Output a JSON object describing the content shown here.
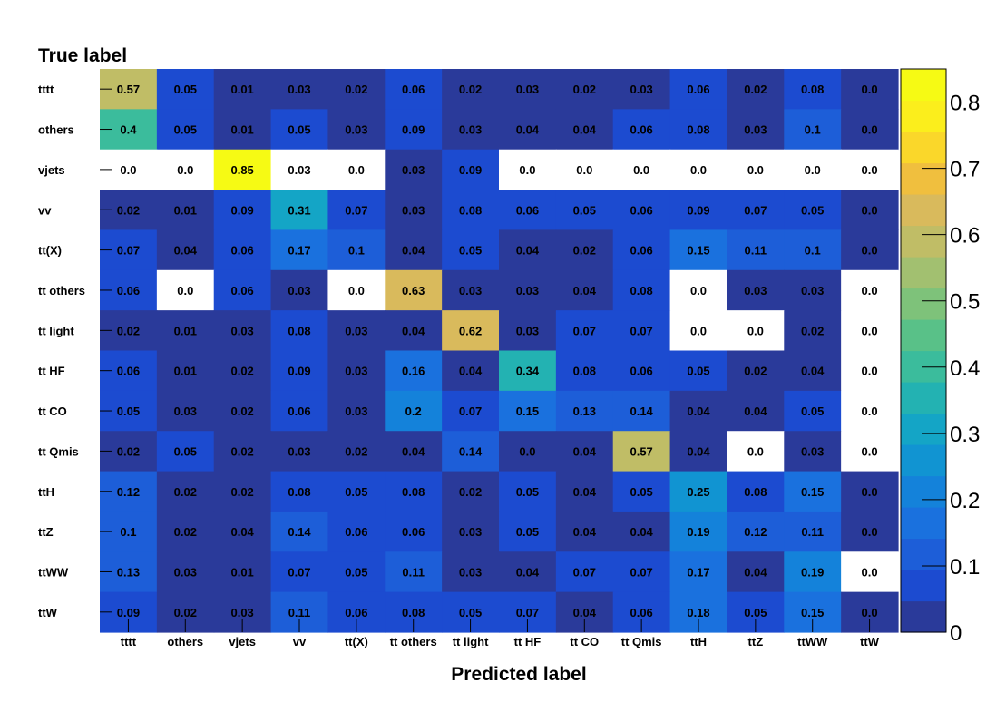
{
  "chart_data": {
    "type": "heatmap",
    "ylabel": "True label",
    "xlabel": "Predicted label",
    "x_categories": [
      "tttt",
      "others",
      "vjets",
      "vv",
      "tt(X)",
      "tt others",
      "tt light",
      "tt HF",
      "tt CO",
      "tt Qmis",
      "ttH",
      "ttZ",
      "ttWW",
      "ttW"
    ],
    "y_categories": [
      "tttt",
      "others",
      "vjets",
      "vv",
      "tt(X)",
      "tt others",
      "tt light",
      "tt HF",
      "tt CO",
      "tt Qmis",
      "ttH",
      "ttZ",
      "ttWW",
      "ttW"
    ],
    "values": [
      [
        0.57,
        0.05,
        0.01,
        0.03,
        0.02,
        0.06,
        0.02,
        0.03,
        0.02,
        0.03,
        0.06,
        0.02,
        0.08,
        0.0
      ],
      [
        0.4,
        0.05,
        0.01,
        0.05,
        0.03,
        0.09,
        0.03,
        0.04,
        0.04,
        0.06,
        0.08,
        0.03,
        0.1,
        0.0
      ],
      [
        0.0,
        0.0,
        0.85,
        0.03,
        0.0,
        0.03,
        0.09,
        0.0,
        0.0,
        0.0,
        0.0,
        0.0,
        0.0,
        0.0
      ],
      [
        0.02,
        0.01,
        0.09,
        0.31,
        0.07,
        0.03,
        0.08,
        0.06,
        0.05,
        0.06,
        0.09,
        0.07,
        0.05,
        0.0
      ],
      [
        0.07,
        0.04,
        0.06,
        0.17,
        0.1,
        0.04,
        0.05,
        0.04,
        0.02,
        0.06,
        0.15,
        0.11,
        0.1,
        0.0
      ],
      [
        0.06,
        0.0,
        0.06,
        0.03,
        0.0,
        0.63,
        0.03,
        0.03,
        0.04,
        0.08,
        0.0,
        0.03,
        0.03,
        0.0
      ],
      [
        0.02,
        0.01,
        0.03,
        0.08,
        0.03,
        0.04,
        0.62,
        0.03,
        0.07,
        0.07,
        0.0,
        0.0,
        0.02,
        0.0
      ],
      [
        0.06,
        0.01,
        0.02,
        0.09,
        0.03,
        0.16,
        0.04,
        0.34,
        0.08,
        0.06,
        0.05,
        0.02,
        0.04,
        0.0
      ],
      [
        0.05,
        0.03,
        0.02,
        0.06,
        0.03,
        0.2,
        0.07,
        0.15,
        0.13,
        0.14,
        0.04,
        0.04,
        0.05,
        0.0
      ],
      [
        0.02,
        0.05,
        0.02,
        0.03,
        0.02,
        0.04,
        0.14,
        0.0,
        0.04,
        0.57,
        0.04,
        0.0,
        0.03,
        0.0
      ],
      [
        0.12,
        0.02,
        0.02,
        0.08,
        0.05,
        0.08,
        0.02,
        0.05,
        0.04,
        0.05,
        0.25,
        0.08,
        0.15,
        0.0
      ],
      [
        0.1,
        0.02,
        0.04,
        0.14,
        0.06,
        0.06,
        0.03,
        0.05,
        0.04,
        0.04,
        0.19,
        0.12,
        0.11,
        0.0
      ],
      [
        0.13,
        0.03,
        0.01,
        0.07,
        0.05,
        0.11,
        0.03,
        0.04,
        0.07,
        0.07,
        0.17,
        0.04,
        0.19,
        0.0
      ],
      [
        0.09,
        0.02,
        0.03,
        0.11,
        0.06,
        0.08,
        0.05,
        0.07,
        0.04,
        0.06,
        0.18,
        0.05,
        0.15,
        0.0
      ]
    ],
    "white_cells": [
      [
        2,
        0
      ],
      [
        2,
        1
      ],
      [
        2,
        3
      ],
      [
        2,
        4
      ],
      [
        2,
        7
      ],
      [
        2,
        8
      ],
      [
        2,
        9
      ],
      [
        2,
        10
      ],
      [
        2,
        11
      ],
      [
        2,
        12
      ],
      [
        2,
        13
      ],
      [
        5,
        1
      ],
      [
        5,
        4
      ],
      [
        5,
        10
      ],
      [
        5,
        13
      ],
      [
        6,
        10
      ],
      [
        6,
        11
      ],
      [
        6,
        13
      ],
      [
        7,
        13
      ],
      [
        8,
        13
      ],
      [
        9,
        11
      ],
      [
        9,
        13
      ],
      [
        12,
        13
      ]
    ],
    "colorbar": {
      "zmin": 0,
      "zmax": 0.85,
      "tick_labels": [
        "0",
        "0.1",
        "0.2",
        "0.3",
        "0.4",
        "0.5",
        "0.6",
        "0.7",
        "0.8"
      ],
      "tick_values": [
        0,
        0.1,
        0.2,
        0.3,
        0.4,
        0.5,
        0.6,
        0.7,
        0.8
      ],
      "colors": [
        "#2a3a9a",
        "#1c4bd0",
        "#1d5ed8",
        "#1a71de",
        "#1482da",
        "#1194d2",
        "#14a5c6",
        "#23b2b2",
        "#3bbc9c",
        "#59c188",
        "#7ec27a",
        "#a2c070",
        "#c0bd66",
        "#d9ba5c",
        "#f0bf3e",
        "#fad72a",
        "#fbee1c",
        "#f6fa14"
      ],
      "grid": false
    }
  }
}
